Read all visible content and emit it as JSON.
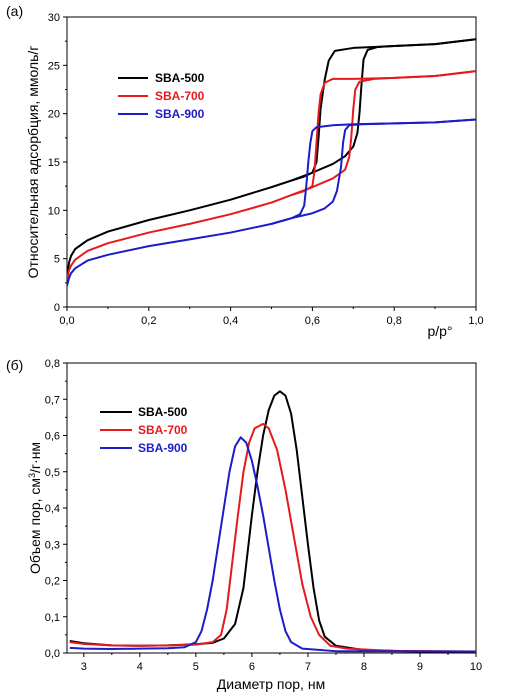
{
  "chart_data": [
    {
      "panel_label": "(a)",
      "type": "line",
      "title": "",
      "xlabel": "p/p°",
      "ylabel": "Относительная адсорбция, ммоль/г",
      "xlim": [
        0.0,
        1.0
      ],
      "ylim": [
        0,
        30
      ],
      "x_ticks": [
        "0,0",
        "0,2",
        "0,4",
        "0,6",
        "0,8",
        "1,0"
      ],
      "y_ticks": [
        "0",
        "5",
        "10",
        "15",
        "20",
        "25",
        "30"
      ],
      "legend": "top-left",
      "series": [
        {
          "name": "SBA-500",
          "color": "#000000",
          "adsorption": [
            [
              0.0,
              3.0
            ],
            [
              0.005,
              4.6
            ],
            [
              0.01,
              5.3
            ],
            [
              0.02,
              6.0
            ],
            [
              0.05,
              6.9
            ],
            [
              0.1,
              7.8
            ],
            [
              0.2,
              9.0
            ],
            [
              0.3,
              10.0
            ],
            [
              0.4,
              11.1
            ],
            [
              0.5,
              12.4
            ],
            [
              0.55,
              13.1
            ],
            [
              0.6,
              13.9
            ],
            [
              0.65,
              14.8
            ],
            [
              0.68,
              15.6
            ],
            [
              0.7,
              16.6
            ],
            [
              0.71,
              18.0
            ],
            [
              0.715,
              20.0
            ],
            [
              0.72,
              23.0
            ],
            [
              0.725,
              25.6
            ],
            [
              0.735,
              26.6
            ],
            [
              0.76,
              26.9
            ],
            [
              0.8,
              27.0
            ],
            [
              0.9,
              27.2
            ],
            [
              1.0,
              27.7
            ]
          ],
          "desorption": [
            [
              0.55,
              13.1
            ],
            [
              0.58,
              13.5
            ],
            [
              0.6,
              13.9
            ],
            [
              0.61,
              15.0
            ],
            [
              0.615,
              17.5
            ],
            [
              0.62,
              20.5
            ],
            [
              0.63,
              23.5
            ],
            [
              0.64,
              25.5
            ],
            [
              0.655,
              26.5
            ],
            [
              0.7,
              26.8
            ],
            [
              0.8,
              27.0
            ],
            [
              0.9,
              27.2
            ],
            [
              1.0,
              27.7
            ]
          ]
        },
        {
          "name": "SBA-700",
          "color": "#e41a1c",
          "adsorption": [
            [
              0.0,
              2.8
            ],
            [
              0.005,
              3.8
            ],
            [
              0.01,
              4.3
            ],
            [
              0.02,
              4.9
            ],
            [
              0.05,
              5.8
            ],
            [
              0.1,
              6.6
            ],
            [
              0.2,
              7.7
            ],
            [
              0.3,
              8.6
            ],
            [
              0.4,
              9.6
            ],
            [
              0.5,
              10.8
            ],
            [
              0.55,
              11.6
            ],
            [
              0.6,
              12.4
            ],
            [
              0.65,
              13.3
            ],
            [
              0.68,
              14.2
            ],
            [
              0.69,
              15.5
            ],
            [
              0.695,
              17.5
            ],
            [
              0.7,
              20.5
            ],
            [
              0.705,
              22.5
            ],
            [
              0.715,
              23.3
            ],
            [
              0.75,
              23.6
            ],
            [
              0.8,
              23.7
            ],
            [
              0.9,
              23.9
            ],
            [
              1.0,
              24.4
            ]
          ],
          "desorption": [
            [
              0.55,
              11.6
            ],
            [
              0.58,
              12.0
            ],
            [
              0.6,
              12.5
            ],
            [
              0.605,
              14.0
            ],
            [
              0.61,
              17.0
            ],
            [
              0.615,
              20.0
            ],
            [
              0.62,
              22.0
            ],
            [
              0.63,
              23.2
            ],
            [
              0.65,
              23.6
            ],
            [
              0.7,
              23.6
            ],
            [
              0.8,
              23.7
            ],
            [
              0.9,
              23.9
            ],
            [
              1.0,
              24.4
            ]
          ]
        },
        {
          "name": "SBA-900",
          "color": "#1c1cc8",
          "adsorption": [
            [
              0.0,
              2.2
            ],
            [
              0.005,
              3.0
            ],
            [
              0.01,
              3.5
            ],
            [
              0.02,
              4.0
            ],
            [
              0.05,
              4.8
            ],
            [
              0.1,
              5.4
            ],
            [
              0.2,
              6.3
            ],
            [
              0.3,
              7.0
            ],
            [
              0.4,
              7.7
            ],
            [
              0.5,
              8.6
            ],
            [
              0.55,
              9.2
            ],
            [
              0.6,
              9.7
            ],
            [
              0.63,
              10.2
            ],
            [
              0.65,
              10.9
            ],
            [
              0.66,
              12.0
            ],
            [
              0.67,
              14.5
            ],
            [
              0.675,
              17.0
            ],
            [
              0.68,
              18.3
            ],
            [
              0.69,
              18.8
            ],
            [
              0.72,
              18.9
            ],
            [
              0.8,
              19.0
            ],
            [
              0.9,
              19.1
            ],
            [
              1.0,
              19.4
            ]
          ],
          "desorption": [
            [
              0.5,
              8.6
            ],
            [
              0.55,
              9.2
            ],
            [
              0.57,
              9.6
            ],
            [
              0.58,
              10.5
            ],
            [
              0.585,
              12.5
            ],
            [
              0.59,
              15.0
            ],
            [
              0.595,
              17.0
            ],
            [
              0.6,
              18.2
            ],
            [
              0.61,
              18.6
            ],
            [
              0.65,
              18.8
            ],
            [
              0.7,
              18.9
            ],
            [
              0.8,
              19.0
            ],
            [
              0.9,
              19.1
            ],
            [
              1.0,
              19.4
            ]
          ]
        }
      ]
    },
    {
      "panel_label": "(б)",
      "type": "line",
      "title": "",
      "xlabel": "Диаметр пор, нм",
      "ylabel": "Объем пор, см³/г·нм",
      "ylabel_parts": [
        "Объем пор, см",
        "3",
        "/г·нм"
      ],
      "xlim": [
        2.7,
        10.0
      ],
      "ylim": [
        0.0,
        0.8
      ],
      "x_ticks": [
        "3",
        "4",
        "5",
        "6",
        "7",
        "8",
        "9",
        "10"
      ],
      "y_ticks": [
        "0,0",
        "0,1",
        "0,2",
        "0,3",
        "0,4",
        "0,5",
        "0,6",
        "0,7",
        "0,8"
      ],
      "legend": "top-left",
      "series": [
        {
          "name": "SBA-500",
          "color": "#000000",
          "points": [
            [
              2.75,
              0.033
            ],
            [
              3.0,
              0.027
            ],
            [
              3.5,
              0.021
            ],
            [
              4.0,
              0.02
            ],
            [
              4.5,
              0.021
            ],
            [
              5.0,
              0.024
            ],
            [
              5.3,
              0.028
            ],
            [
              5.5,
              0.04
            ],
            [
              5.7,
              0.08
            ],
            [
              5.85,
              0.18
            ],
            [
              6.0,
              0.38
            ],
            [
              6.1,
              0.5
            ],
            [
              6.2,
              0.6
            ],
            [
              6.3,
              0.67
            ],
            [
              6.4,
              0.71
            ],
            [
              6.5,
              0.722
            ],
            [
              6.6,
              0.71
            ],
            [
              6.7,
              0.66
            ],
            [
              6.8,
              0.56
            ],
            [
              6.9,
              0.43
            ],
            [
              7.0,
              0.3
            ],
            [
              7.1,
              0.18
            ],
            [
              7.2,
              0.09
            ],
            [
              7.3,
              0.045
            ],
            [
              7.5,
              0.02
            ],
            [
              8.0,
              0.008
            ],
            [
              9.0,
              0.004
            ],
            [
              10.0,
              0.003
            ]
          ]
        },
        {
          "name": "SBA-700",
          "color": "#e41a1c",
          "points": [
            [
              2.75,
              0.03
            ],
            [
              3.0,
              0.025
            ],
            [
              3.5,
              0.021
            ],
            [
              4.0,
              0.02
            ],
            [
              4.5,
              0.021
            ],
            [
              5.0,
              0.023
            ],
            [
              5.3,
              0.03
            ],
            [
              5.45,
              0.05
            ],
            [
              5.55,
              0.12
            ],
            [
              5.65,
              0.25
            ],
            [
              5.75,
              0.38
            ],
            [
              5.85,
              0.5
            ],
            [
              5.95,
              0.58
            ],
            [
              6.05,
              0.62
            ],
            [
              6.2,
              0.632
            ],
            [
              6.3,
              0.62
            ],
            [
              6.45,
              0.56
            ],
            [
              6.6,
              0.45
            ],
            [
              6.75,
              0.32
            ],
            [
              6.9,
              0.19
            ],
            [
              7.05,
              0.1
            ],
            [
              7.2,
              0.05
            ],
            [
              7.4,
              0.02
            ],
            [
              7.7,
              0.012
            ],
            [
              8.5,
              0.006
            ],
            [
              10.0,
              0.004
            ]
          ]
        },
        {
          "name": "SBA-900",
          "color": "#1c1cc8",
          "points": [
            [
              2.75,
              0.014
            ],
            [
              3.0,
              0.012
            ],
            [
              3.5,
              0.011
            ],
            [
              4.0,
              0.012
            ],
            [
              4.5,
              0.013
            ],
            [
              4.8,
              0.016
            ],
            [
              5.0,
              0.03
            ],
            [
              5.1,
              0.06
            ],
            [
              5.2,
              0.12
            ],
            [
              5.3,
              0.2
            ],
            [
              5.4,
              0.3
            ],
            [
              5.5,
              0.4
            ],
            [
              5.6,
              0.5
            ],
            [
              5.7,
              0.57
            ],
            [
              5.8,
              0.595
            ],
            [
              5.9,
              0.58
            ],
            [
              6.0,
              0.53
            ],
            [
              6.1,
              0.46
            ],
            [
              6.2,
              0.38
            ],
            [
              6.3,
              0.29
            ],
            [
              6.4,
              0.2
            ],
            [
              6.5,
              0.12
            ],
            [
              6.6,
              0.06
            ],
            [
              6.7,
              0.03
            ],
            [
              6.9,
              0.012
            ],
            [
              7.5,
              0.005
            ],
            [
              10.0,
              0.004
            ]
          ]
        }
      ]
    }
  ]
}
